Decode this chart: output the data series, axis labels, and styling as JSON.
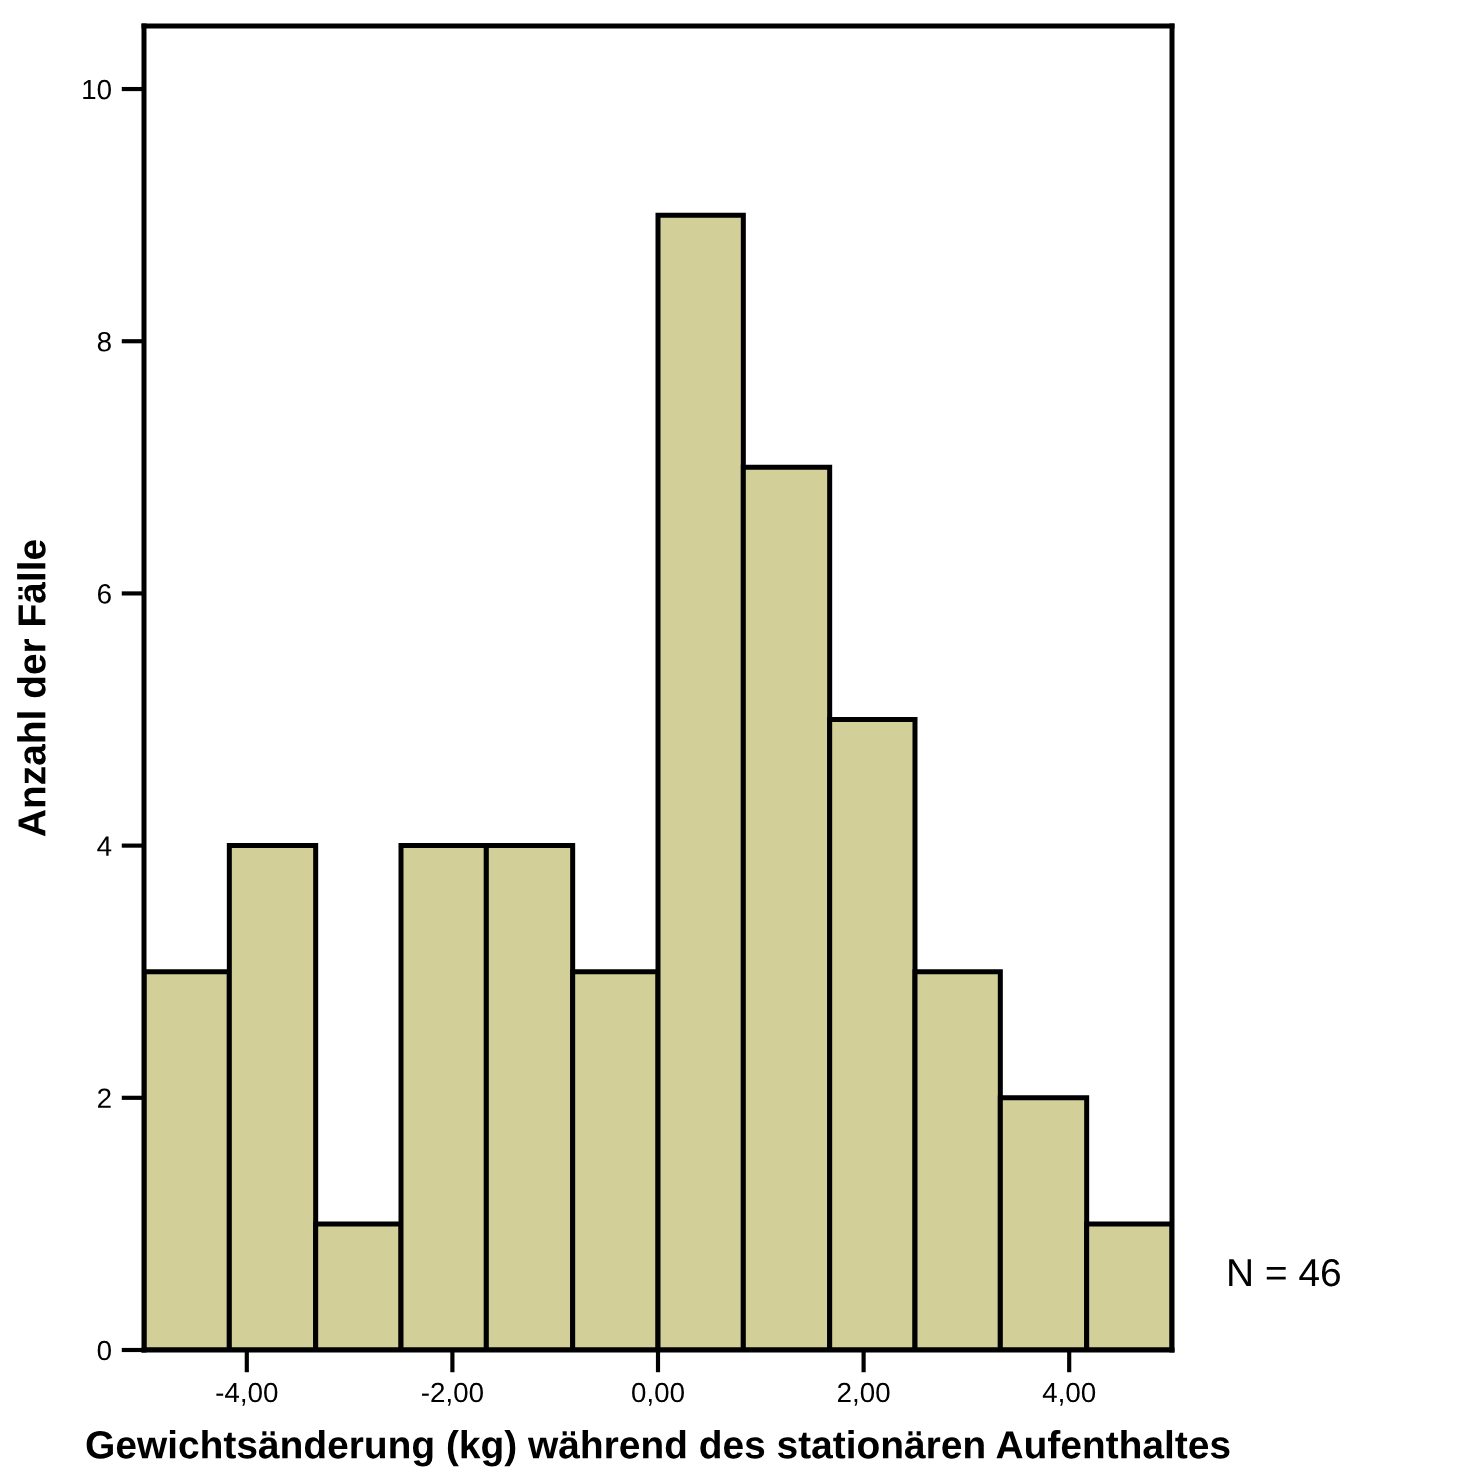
{
  "chart_data": {
    "type": "histogram",
    "xlabel": "Gewichtsänderung (kg) während des stationären Aufenthaltes",
    "ylabel": "Anzahl der Fälle",
    "bins": [
      -5,
      -4.17,
      -3.33,
      -2.5,
      -1.67,
      -0.83,
      0,
      0.83,
      1.67,
      2.5,
      3.33,
      4.17,
      5
    ],
    "values": [
      3,
      4,
      1,
      4,
      4,
      3,
      9,
      7,
      5,
      3,
      2,
      1
    ],
    "color": "#d3cf99",
    "xlim": [
      -5,
      5
    ],
    "xticks": [
      {
        "value": -4,
        "label": "-4,00"
      },
      {
        "value": -2,
        "label": "-2,00"
      },
      {
        "value": 0,
        "label": "0,00"
      },
      {
        "value": 2,
        "label": "2,00"
      },
      {
        "value": 4,
        "label": "4,00"
      }
    ],
    "ylim": [
      0,
      10.5
    ],
    "yticks": [
      0,
      2,
      4,
      6,
      8,
      10
    ],
    "grid": false,
    "legend": false,
    "annotations": [
      "N = 46"
    ]
  }
}
